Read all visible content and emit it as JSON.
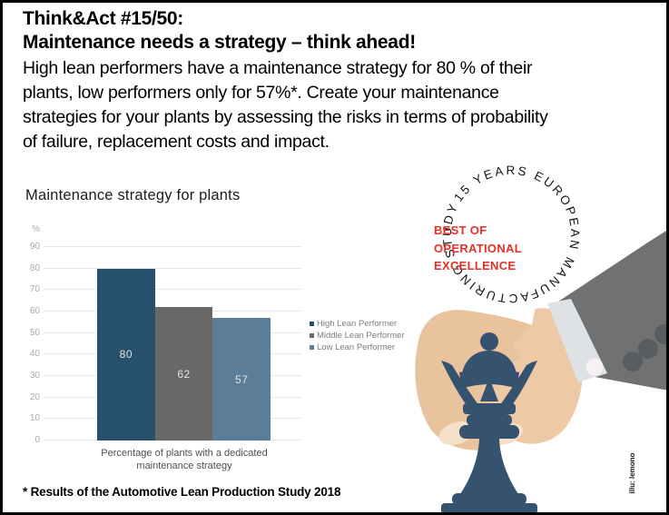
{
  "header": {
    "title_line1": "Think&Act #15/50:",
    "title_line2": "Maintenance needs a strategy – think ahead!",
    "body_lines": [
      "High lean performers have a maintenance strategy for 80 % of their",
      "plants, low performers only for 57%*. Create your maintenance",
      "strategies for your plants by assessing the risks in terms of probability",
      "of failure, replacement costs and impact."
    ]
  },
  "chart_data": {
    "type": "bar",
    "title": "Maintenance strategy for plants",
    "unit_label": "%",
    "ylabel": "%",
    "yticks": [
      0,
      10,
      20,
      30,
      40,
      50,
      60,
      70,
      80,
      90
    ],
    "ylim": [
      0,
      100
    ],
    "grid": true,
    "legend_position": "right",
    "xlabel_lines": [
      "Percentage of plants with a dedicated",
      "maintenance strategy"
    ],
    "categories": [
      "Percentage of plants with a dedicated maintenance strategy"
    ],
    "series": [
      {
        "name": "High Lean Performer",
        "value": 80,
        "color": "#27506C"
      },
      {
        "name": "Middle Lean Performer",
        "value": 62,
        "color": "#696867"
      },
      {
        "name": "Low Lean Performer",
        "value": 57,
        "color": "#5B7D97"
      }
    ],
    "value_label_color": "#E3E3E3"
  },
  "badge": {
    "circular_text": "15 YEARS EUROPEAN MANUFACTURING STUDY",
    "center_lines": [
      "BEST OF",
      "OPERATIONAL",
      "EXCELLENCE"
    ],
    "center_color": "#E3312A"
  },
  "illustration": {
    "credit": "illu: lemono"
  },
  "footnote": "* Results of the Automotive Lean Production Study 2018",
  "colors": {
    "accent_red": "#E3312A",
    "queen_blue": "#35526F",
    "sleeve_gray": "#6F7173",
    "cuff_gray": "#DFE2E4",
    "skin": "#EDC9A6"
  }
}
